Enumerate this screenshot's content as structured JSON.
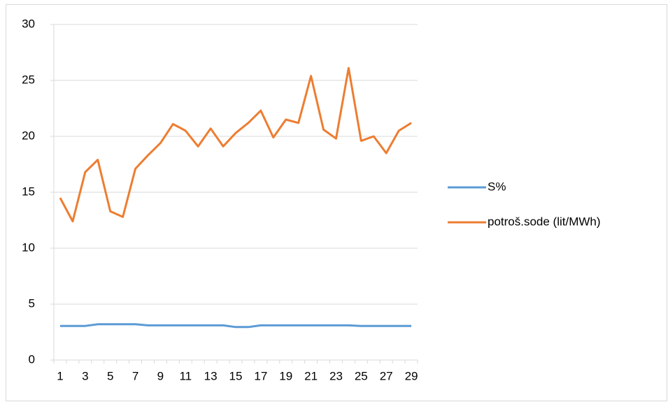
{
  "chart_data": {
    "type": "line",
    "categories": [
      1,
      null,
      3,
      null,
      5,
      null,
      7,
      null,
      9,
      null,
      11,
      null,
      13,
      null,
      15,
      null,
      17,
      null,
      19,
      null,
      21,
      null,
      23,
      null,
      25,
      null,
      27,
      null,
      29
    ],
    "series": [
      {
        "name": "S%",
        "color": "#5b9bd5",
        "values": [
          3.05,
          3.05,
          3.05,
          3.2,
          3.2,
          3.2,
          3.2,
          3.1,
          3.1,
          3.1,
          3.1,
          3.1,
          3.1,
          3.1,
          2.95,
          2.95,
          3.1,
          3.1,
          3.1,
          3.1,
          3.1,
          3.1,
          3.1,
          3.1,
          3.05,
          3.05,
          3.05,
          3.05,
          3.05
        ]
      },
      {
        "name": "potroš.sode (lit/MWh)",
        "color": "#ed7d31",
        "values": [
          14.5,
          12.4,
          16.8,
          17.9,
          13.3,
          12.8,
          17.1,
          18.3,
          19.4,
          21.1,
          20.5,
          19.1,
          20.7,
          19.1,
          20.3,
          21.2,
          22.3,
          19.9,
          21.5,
          21.2,
          25.4,
          20.6,
          19.8,
          26.1,
          19.6,
          20.0,
          18.5,
          20.5,
          21.2
        ]
      }
    ],
    "ylim": [
      0,
      30
    ],
    "yticks": [
      0,
      5,
      10,
      15,
      20,
      25,
      30
    ],
    "grid": true,
    "legend": "right"
  }
}
